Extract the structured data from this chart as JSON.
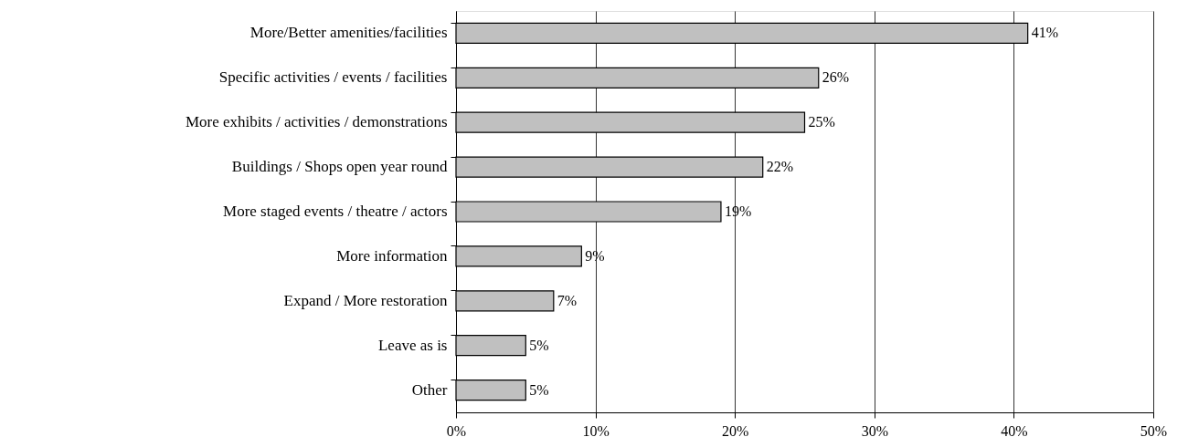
{
  "chart_data": {
    "type": "bar",
    "orientation": "horizontal",
    "categories": [
      "More/Better amenities/facilities",
      "Specific activities / events / facilities",
      "More exhibits / activities / demonstrations",
      "Buildings / Shops open year round",
      "More staged events / theatre / actors",
      "More information",
      "Expand / More restoration",
      "Leave as is",
      "Other"
    ],
    "values": [
      41,
      26,
      25,
      22,
      19,
      9,
      7,
      5,
      5
    ],
    "value_labels": [
      "41%",
      "26%",
      "25%",
      "22%",
      "19%",
      "9%",
      "7%",
      "5%",
      "5%"
    ],
    "color": "#c0c0c0",
    "xlim": [
      0,
      50
    ],
    "xticks": [
      {
        "value": 0,
        "label": "0%"
      },
      {
        "value": 10,
        "label": "10%"
      },
      {
        "value": 20,
        "label": "20%"
      },
      {
        "value": 30,
        "label": "30%"
      },
      {
        "value": 40,
        "label": "40%"
      },
      {
        "value": 50,
        "label": "50%"
      }
    ],
    "grid": "x"
  }
}
